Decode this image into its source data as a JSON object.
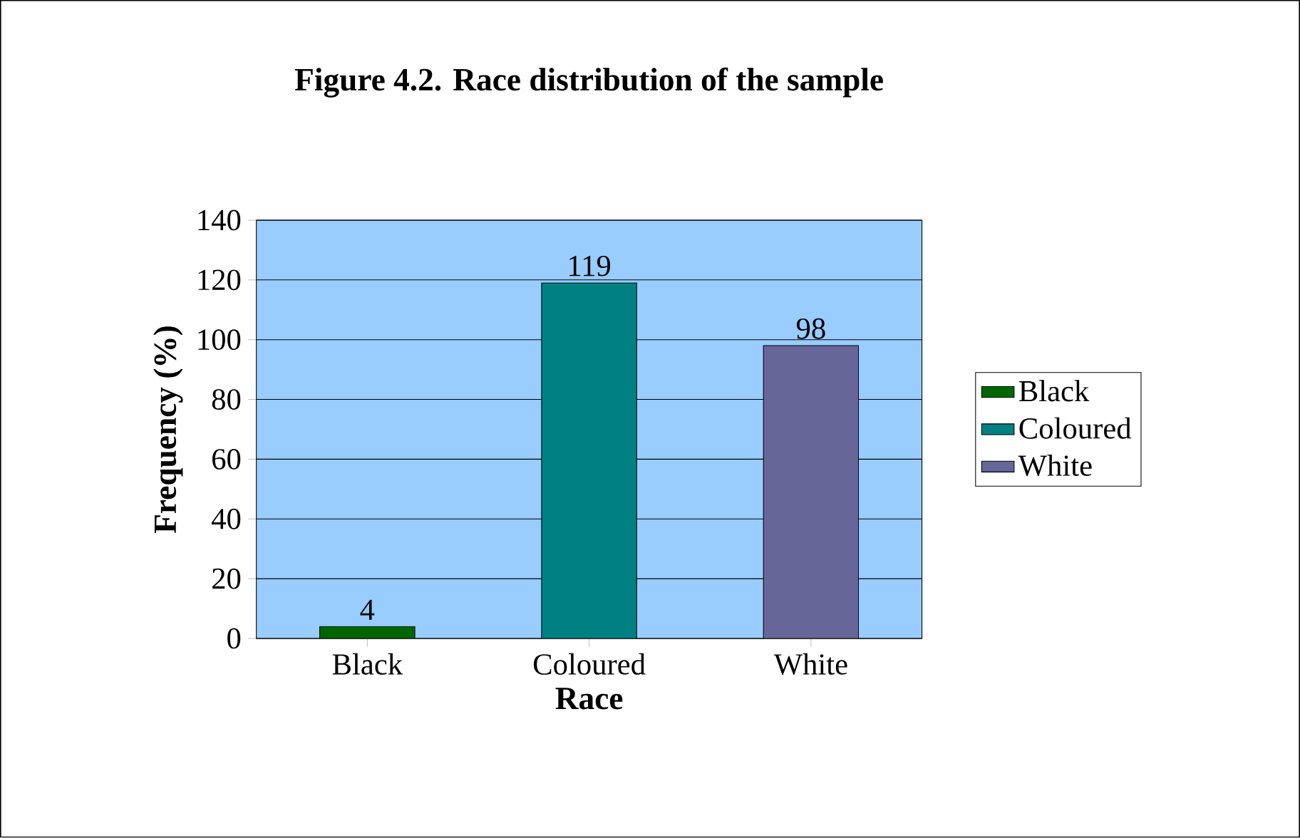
{
  "chart_data": {
    "type": "bar",
    "title": "Figure 4.2. Race distribution of the sample",
    "xlabel": "Race",
    "ylabel": "Frequency (%)",
    "categories": [
      "Black",
      "Coloured",
      "White"
    ],
    "series": [
      {
        "name": "Black",
        "color": "#006600",
        "values": [
          4,
          null,
          null
        ]
      },
      {
        "name": "Coloured",
        "color": "#008080",
        "values": [
          null,
          119,
          null
        ]
      },
      {
        "name": "White",
        "color": "#666699",
        "values": [
          null,
          null,
          98
        ]
      }
    ],
    "ylim": [
      0,
      140
    ],
    "yticks": [
      0,
      20,
      40,
      60,
      80,
      100,
      120,
      140
    ],
    "grid": "y",
    "legend": "right",
    "data_labels": true
  }
}
